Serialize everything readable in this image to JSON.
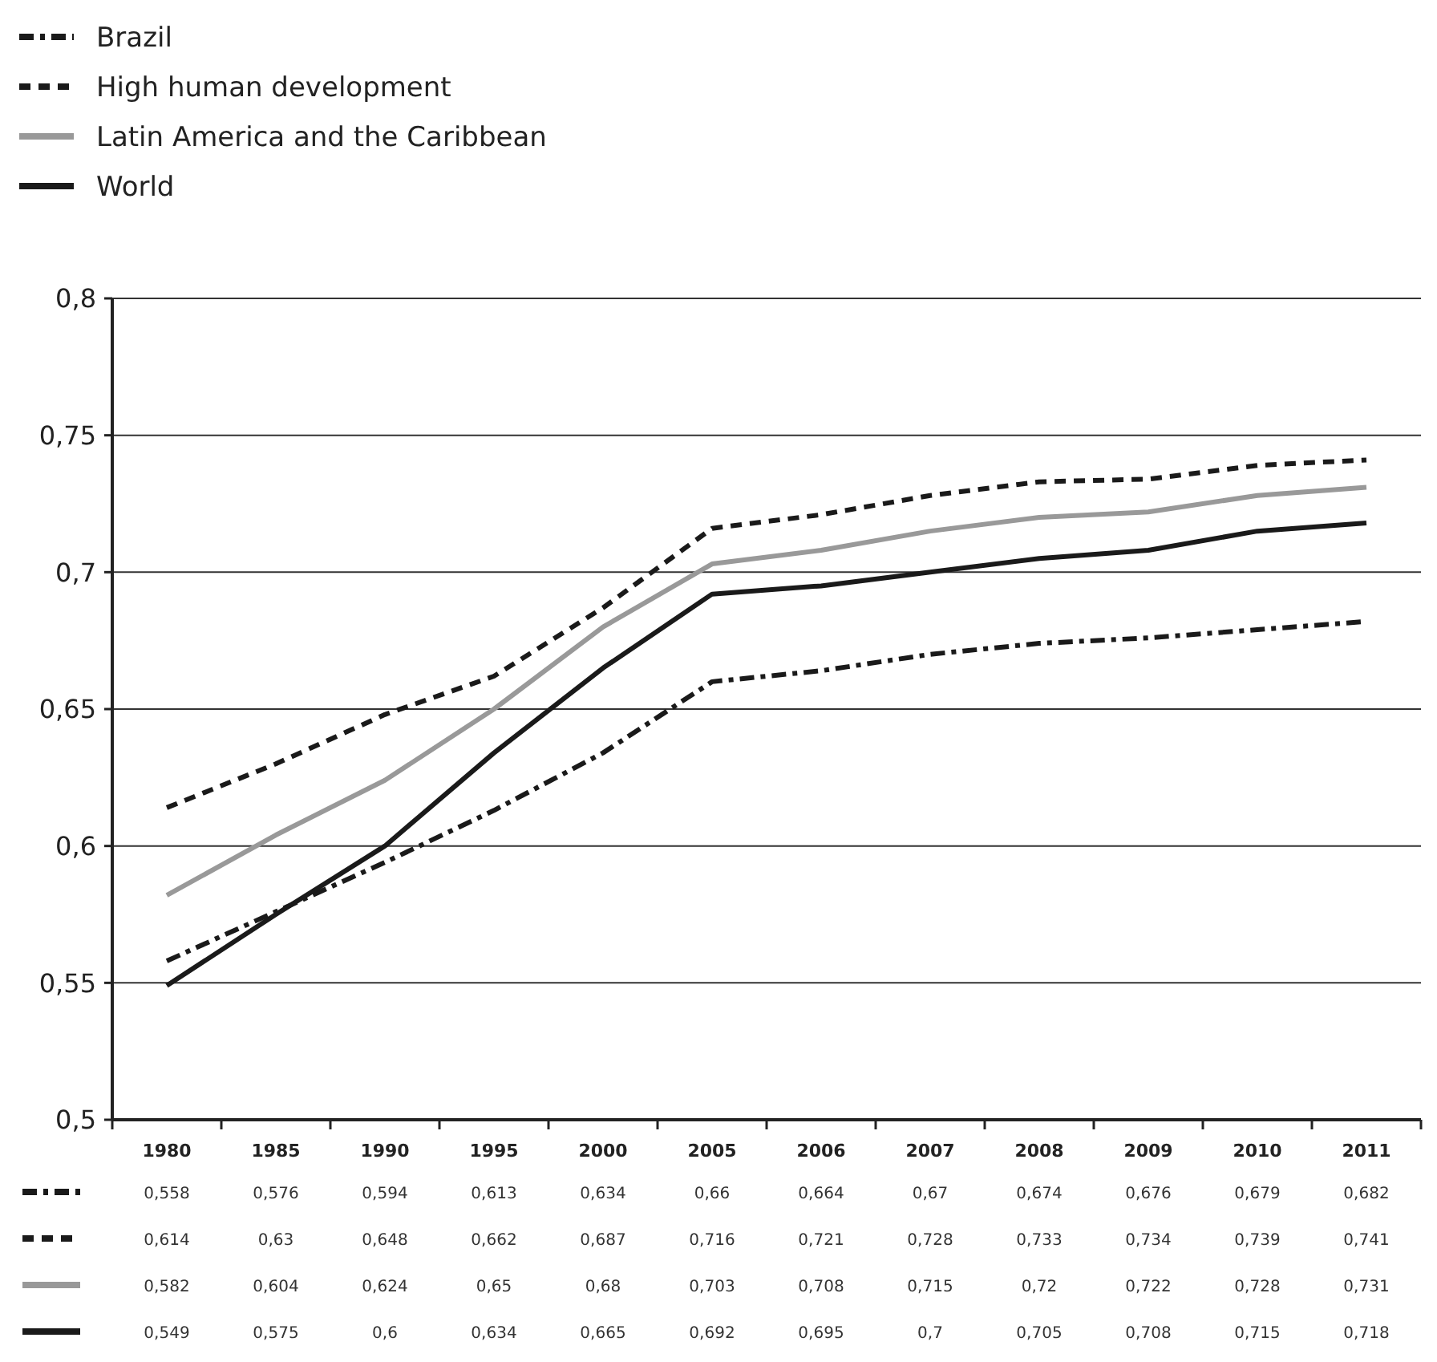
{
  "chart_data": {
    "type": "line",
    "categories": [
      "1980",
      "1985",
      "1990",
      "1995",
      "2000",
      "2005",
      "2006",
      "2007",
      "2008",
      "2009",
      "2010",
      "2011"
    ],
    "ylim": [
      0.5,
      0.8
    ],
    "yticks": [
      {
        "value": 0.5,
        "label": "0,5"
      },
      {
        "value": 0.55,
        "label": "0,55"
      },
      {
        "value": 0.6,
        "label": "0,6"
      },
      {
        "value": 0.65,
        "label": "0,65"
      },
      {
        "value": 0.7,
        "label": "0,7"
      },
      {
        "value": 0.75,
        "label": "0,75"
      },
      {
        "value": 0.8,
        "label": "0,8"
      }
    ],
    "grid": "y",
    "legend": "top left",
    "marker": "none",
    "series": [
      {
        "name": "Brazil",
        "color": "#1a1a1a",
        "line_style": "dashdot",
        "values": [
          0.558,
          0.576,
          0.594,
          0.613,
          0.634,
          0.66,
          0.664,
          0.67,
          0.674,
          0.676,
          0.679,
          0.682
        ],
        "value_labels": [
          "0,558",
          "0,576",
          "0,594",
          "0,613",
          "0,634",
          "0,66",
          "0,664",
          "0,67",
          "0,674",
          "0,676",
          "0,679",
          "0,682"
        ]
      },
      {
        "name": "High human development",
        "color": "#1a1a1a",
        "line_style": "dashed",
        "values": [
          0.614,
          0.63,
          0.648,
          0.662,
          0.687,
          0.716,
          0.721,
          0.728,
          0.733,
          0.734,
          0.739,
          0.741
        ],
        "value_labels": [
          "0,614",
          "0,63",
          "0,648",
          "0,662",
          "0,687",
          "0,716",
          "0,721",
          "0,728",
          "0,733",
          "0,734",
          "0,739",
          "0,741"
        ]
      },
      {
        "name": "Latin America and the Caribbean",
        "color": "#999999",
        "line_style": "solid",
        "values": [
          0.582,
          0.604,
          0.624,
          0.65,
          0.68,
          0.703,
          0.708,
          0.715,
          0.72,
          0.722,
          0.728,
          0.731
        ],
        "value_labels": [
          "0,582",
          "0,604",
          "0,624",
          "0,65",
          "0,68",
          "0,703",
          "0,708",
          "0,715",
          "0,72",
          "0,722",
          "0,728",
          "0,731"
        ]
      },
      {
        "name": "World",
        "color": "#1a1a1a",
        "line_style": "solid",
        "values": [
          0.549,
          0.575,
          0.6,
          0.634,
          0.665,
          0.692,
          0.695,
          0.7,
          0.705,
          0.708,
          0.715,
          0.718
        ],
        "value_labels": [
          "0,549",
          "0,575",
          "0,6",
          "0,634",
          "0,665",
          "0,692",
          "0,695",
          "0,7",
          "0,705",
          "0,708",
          "0,715",
          "0,718"
        ]
      }
    ]
  }
}
